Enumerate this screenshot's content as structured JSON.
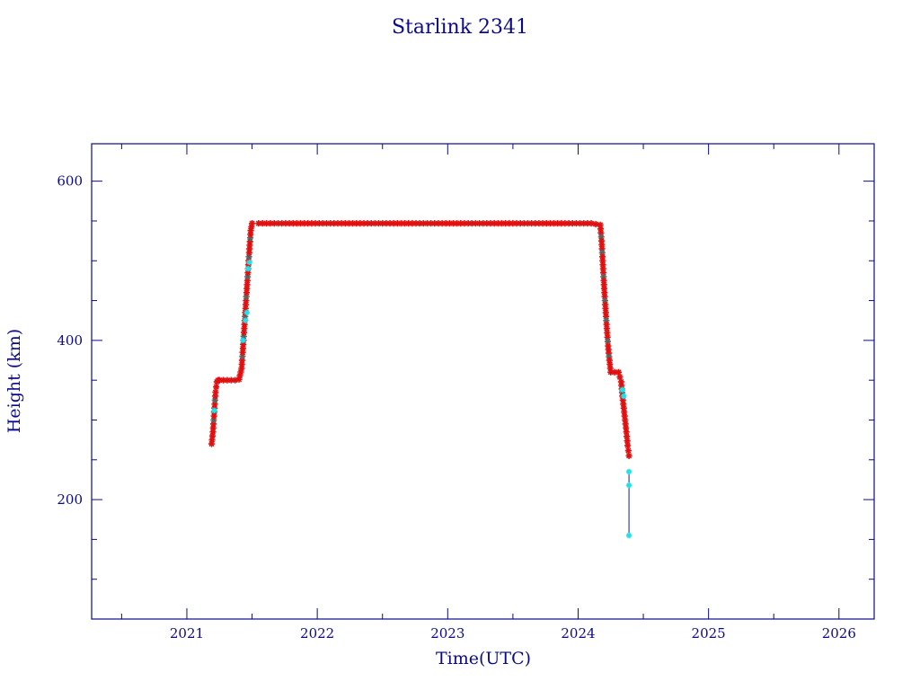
{
  "chart_data": {
    "type": "scatter",
    "title": "Starlink 2341",
    "xlabel": "Time(UTC)",
    "ylabel": "Height (km)",
    "xlim": [
      2020.27,
      2026.27
    ],
    "ylim": [
      50,
      647
    ],
    "x_ticks": [
      "2021",
      "2022",
      "2023",
      "2024",
      "2025",
      "2026"
    ],
    "y_ticks": [
      "200",
      "400",
      "600"
    ],
    "grid": false,
    "colors": {
      "axis": "#0a0a8a",
      "marker_main": "#e01010",
      "marker_dark": "#606060",
      "marker_alt": "#22e0e8",
      "line": "#1a1aa0"
    },
    "series": [
      {
        "marker": "star",
        "x": [
          2021.19,
          2021.2,
          2021.21,
          2021.22,
          2021.23,
          2021.24,
          2021.25,
          2021.28,
          2021.31,
          2021.34,
          2021.37,
          2021.4,
          2021.42,
          2021.43,
          2021.44,
          2021.45,
          2021.46,
          2021.47,
          2021.48,
          2021.49,
          2021.5,
          2021.55,
          2021.7,
          2021.9,
          2022.1,
          2022.3,
          2022.5,
          2022.7,
          2022.9,
          2023.1,
          2023.3,
          2023.5,
          2023.7,
          2023.9,
          2024.1,
          2024.17,
          2024.18,
          2024.19,
          2024.2,
          2024.21,
          2024.22,
          2024.23,
          2024.24,
          2024.25,
          2024.28,
          2024.31,
          2024.33,
          2024.34,
          2024.35,
          2024.36,
          2024.37,
          2024.38,
          2024.39
        ],
        "y": [
          270,
          285,
          310,
          335,
          348,
          350,
          350,
          350,
          350,
          350,
          350,
          351,
          365,
          390,
          415,
          440,
          465,
          490,
          515,
          538,
          547,
          547,
          547,
          547,
          547,
          547,
          547,
          547,
          547,
          547,
          547,
          547,
          547,
          547,
          547,
          545,
          525,
          495,
          465,
          440,
          415,
          393,
          375,
          360,
          360,
          360,
          348,
          330,
          315,
          300,
          285,
          268,
          255
        ]
      },
      {
        "marker": "star",
        "x": [
          2021.21,
          2021.43,
          2021.45,
          2021.46,
          2021.47,
          2021.48,
          2024.34,
          2024.35,
          2024.39,
          2024.39,
          2024.39
        ],
        "y": [
          312,
          400,
          425,
          435,
          490,
          498,
          338,
          330,
          235,
          218,
          155
        ]
      }
    ]
  }
}
